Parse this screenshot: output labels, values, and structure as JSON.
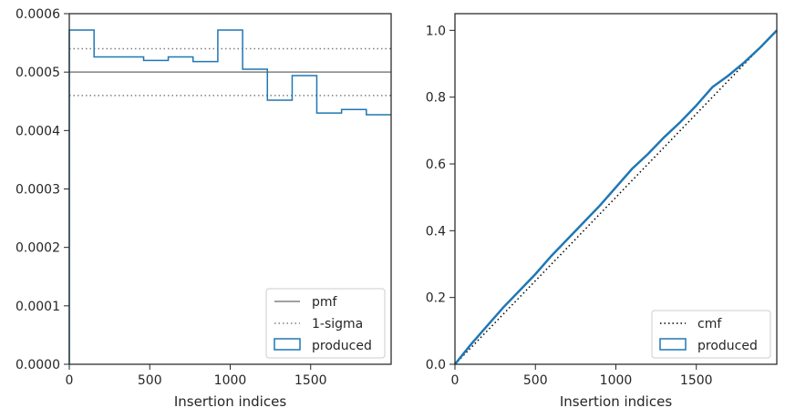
{
  "chart_data": [
    {
      "type": "line",
      "xlabel": "Insertion indices",
      "ylabel": "",
      "xlim": [
        0,
        2000
      ],
      "ylim": [
        0,
        0.0006
      ],
      "xticks": [
        0,
        500,
        1000,
        1500
      ],
      "xtick_labels": [
        "0",
        "500",
        "1000",
        "1500"
      ],
      "yticks": [
        0,
        0.0001,
        0.0002,
        0.0003,
        0.0004,
        0.0005,
        0.0006
      ],
      "ytick_labels": [
        "0.0000",
        "0.0001",
        "0.0002",
        "0.0003",
        "0.0004",
        "0.0005",
        "0.0006"
      ],
      "grid": false,
      "legend_position": "bottom-right",
      "colors": {
        "produced": "#1f77b4",
        "reference": "#808080"
      },
      "series": [
        {
          "name": "pmf",
          "style": "solid",
          "kind": "hline",
          "y": 0.0005
        },
        {
          "name": "1-sigma",
          "style": "dotted",
          "kind": "hlines",
          "y": [
            0.00054,
            0.00046
          ]
        },
        {
          "name": "produced",
          "style": "step",
          "kind": "histogram",
          "bin_edges": [
            0,
            154,
            308,
            462,
            615,
            769,
            923,
            1077,
            1231,
            1385,
            1538,
            1692,
            1846,
            2000
          ],
          "values": [
            0.000572,
            0.000526,
            0.000526,
            0.00052,
            0.000526,
            0.000518,
            0.000572,
            0.000505,
            0.000452,
            0.000494,
            0.00043,
            0.000436,
            0.000427
          ]
        }
      ],
      "legend": [
        "pmf",
        "1-sigma",
        "produced"
      ]
    },
    {
      "type": "line",
      "xlabel": "Insertion indices",
      "ylabel": "",
      "xlim": [
        0,
        2000
      ],
      "ylim": [
        0,
        1.05
      ],
      "xticks": [
        0,
        500,
        1000,
        1500
      ],
      "xtick_labels": [
        "0",
        "500",
        "1000",
        "1500"
      ],
      "yticks": [
        0.0,
        0.2,
        0.4,
        0.6,
        0.8,
        1.0
      ],
      "ytick_labels": [
        "0.0",
        "0.2",
        "0.4",
        "0.6",
        "0.8",
        "1.0"
      ],
      "grid": false,
      "legend_position": "bottom-right",
      "colors": {
        "produced": "#1f77b4",
        "reference": "#000000"
      },
      "series": [
        {
          "name": "cmf",
          "style": "dotted",
          "x": [
            0,
            2000
          ],
          "y": [
            0,
            1.0
          ]
        },
        {
          "name": "produced",
          "style": "solid",
          "x": [
            0,
            100,
            200,
            300,
            400,
            500,
            600,
            700,
            800,
            900,
            1000,
            1100,
            1200,
            1300,
            1400,
            1500,
            1600,
            1700,
            1800,
            1900,
            2000
          ],
          "y": [
            0,
            0.06,
            0.115,
            0.17,
            0.22,
            0.27,
            0.325,
            0.375,
            0.425,
            0.475,
            0.53,
            0.585,
            0.63,
            0.68,
            0.725,
            0.775,
            0.83,
            0.865,
            0.905,
            0.95,
            1.0
          ]
        }
      ],
      "legend": [
        "cmf",
        "produced"
      ]
    }
  ]
}
